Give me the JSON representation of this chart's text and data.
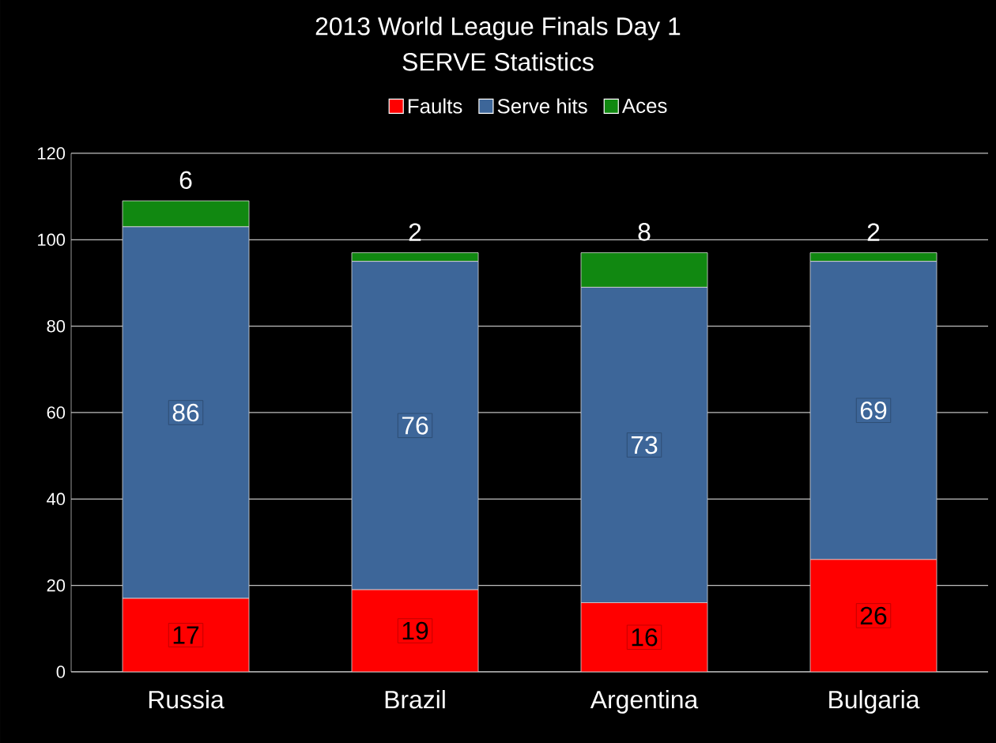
{
  "chart_data": {
    "type": "bar",
    "stacked": true,
    "title": "2013 World League Finals Day 1",
    "subtitle": "SERVE Statistics",
    "categories": [
      "Russia",
      "Brazil",
      "Argentina",
      "Bulgaria"
    ],
    "series": [
      {
        "name": "Faults",
        "color": "#ff0000",
        "values": [
          17,
          19,
          16,
          26
        ]
      },
      {
        "name": "Serve hits",
        "color": "#3d6699",
        "values": [
          86,
          76,
          73,
          69
        ]
      },
      {
        "name": "Aces",
        "color": "#118811",
        "values": [
          6,
          2,
          8,
          2
        ]
      }
    ],
    "ylim": [
      0,
      120
    ],
    "yticks": [
      0,
      20,
      40,
      60,
      80,
      100,
      120
    ],
    "grid": "y",
    "legend": "top",
    "data_labels": true
  }
}
